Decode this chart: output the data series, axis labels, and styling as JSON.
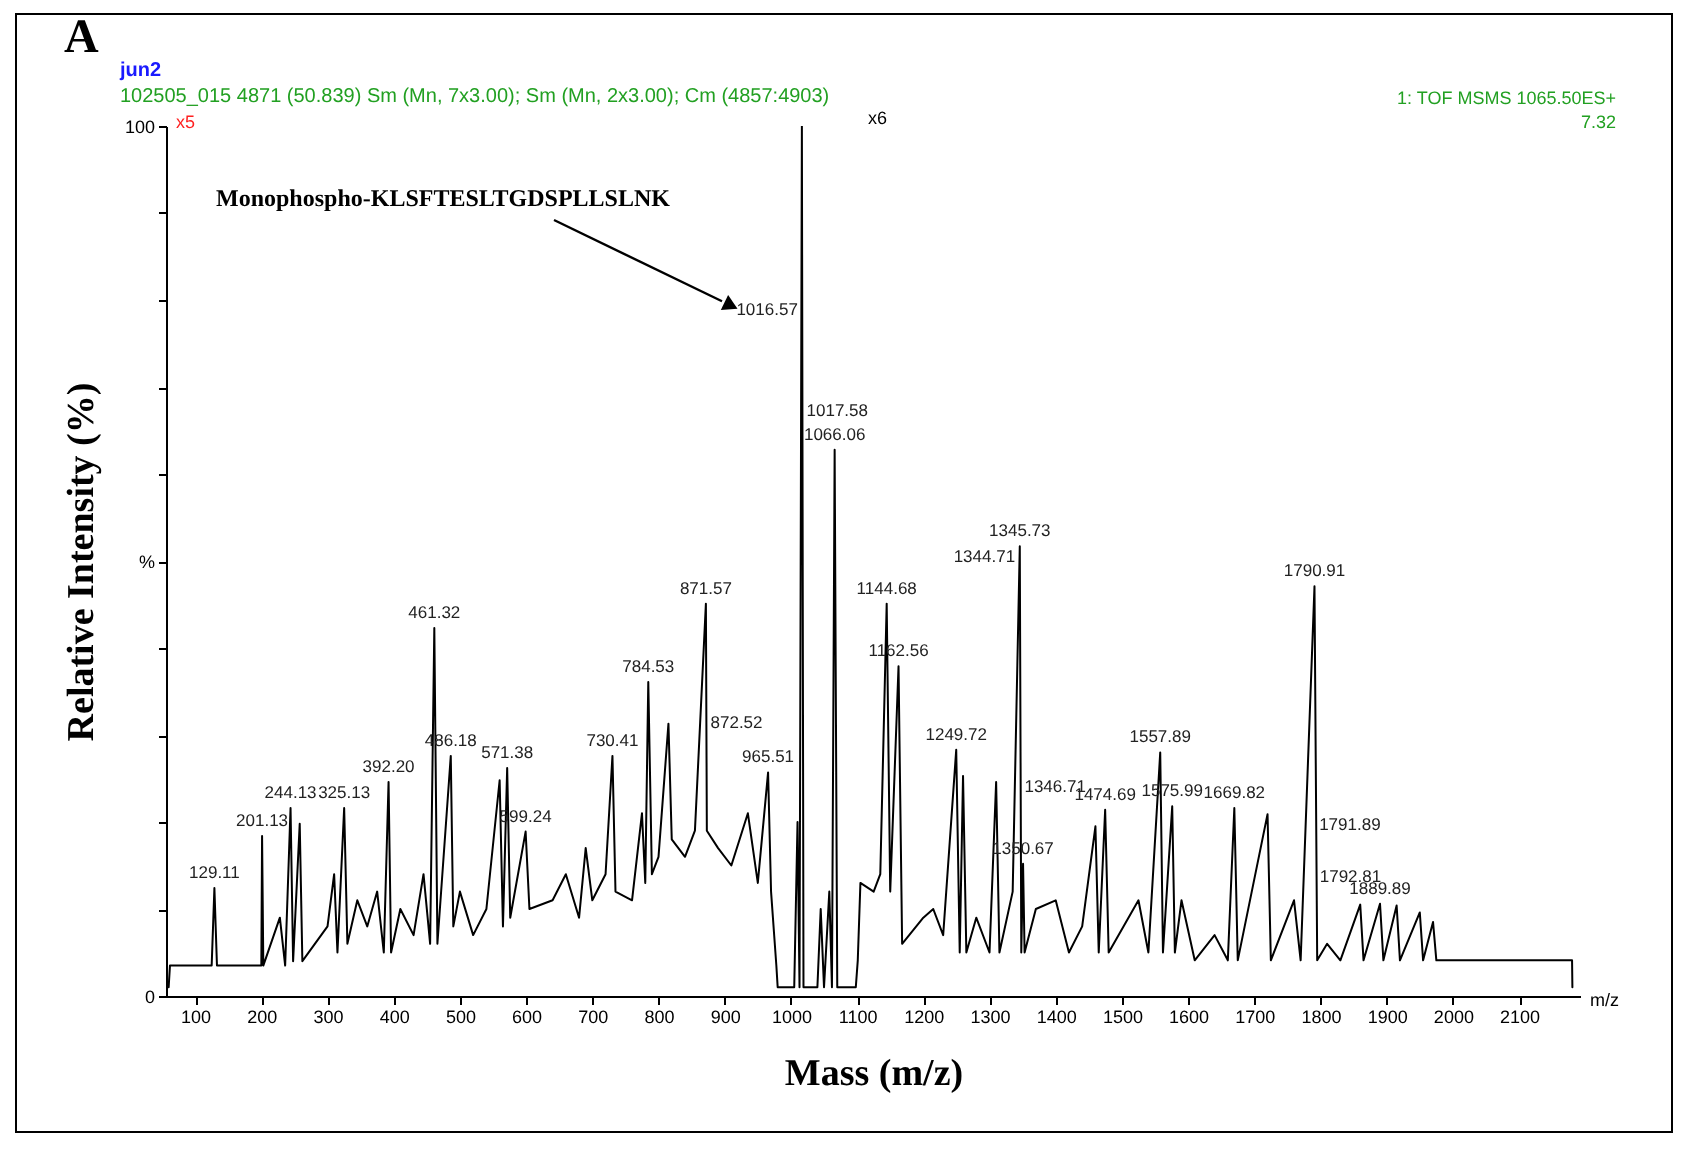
{
  "chart_data": {
    "type": "line",
    "title": "jun2",
    "subtitle": "102505_015  4871 (50.839) Sm (Mn, 7x3.00); Sm (Mn, 2x3.00); Cm (4857:4903)",
    "xlabel": "Mass (m/z)",
    "ylabel": "Relative Intensity (%)",
    "x": [
      60,
      62,
      125,
      129.11,
      133,
      200,
      201.13,
      203,
      228,
      236,
      244.13,
      248,
      258,
      262,
      300,
      310,
      315,
      325.13,
      330,
      345,
      360,
      375,
      385,
      392.2,
      396,
      410,
      430,
      445,
      455,
      461.32,
      466,
      486.18,
      490,
      500,
      520,
      540,
      560,
      565,
      571.38,
      576,
      599.24,
      605,
      640,
      660,
      680,
      690,
      700,
      720,
      730.41,
      735,
      760,
      775,
      780,
      784.53,
      790,
      800,
      815,
      820,
      840,
      855,
      871.57,
      873,
      890,
      910,
      935,
      950,
      965.51,
      970,
      978,
      980,
      1005,
      1010,
      1013,
      1016.57,
      1019,
      1040,
      1045,
      1050,
      1058,
      1062,
      1066.06,
      1070,
      1098,
      1101,
      1105,
      1125,
      1135,
      1144.68,
      1150,
      1162.56,
      1168,
      1200,
      1215,
      1230,
      1249.72,
      1255,
      1260,
      1265,
      1280,
      1300,
      1310,
      1315,
      1335,
      1345.73,
      1348,
      1350.67,
      1353,
      1370,
      1400,
      1420,
      1440,
      1460,
      1465,
      1474.69,
      1480,
      1525,
      1540,
      1557.89,
      1562,
      1575.99,
      1580,
      1590,
      1610,
      1640,
      1660,
      1669.82,
      1675,
      1720,
      1725,
      1760,
      1770,
      1790.91,
      1795,
      1810,
      1830,
      1860,
      1865,
      1889.89,
      1895,
      1915,
      1920,
      1950,
      1955,
      1970,
      1975,
      2180,
      2180.5
    ],
    "series": [
      {
        "color": "#000000",
        "values": [
          1,
          3.5,
          3.5,
          12.4,
          3.5,
          3.5,
          18.4,
          3.5,
          9,
          3.5,
          21.6,
          4,
          19.8,
          4,
          8,
          14,
          5,
          21.6,
          6,
          11,
          8,
          12,
          5,
          24.6,
          5,
          10,
          7,
          14,
          6,
          42.3,
          6,
          27.6,
          8,
          12,
          7,
          10,
          24.8,
          8,
          26.2,
          9,
          18.9,
          10,
          11,
          14,
          9,
          17,
          11,
          14,
          27.6,
          12,
          11,
          21,
          13,
          36.1,
          14,
          16,
          31.3,
          18,
          16,
          19,
          45.1,
          19,
          17,
          15,
          21,
          13,
          25.7,
          12,
          3.5,
          1,
          1,
          20,
          1,
          100,
          1,
          1,
          10,
          1,
          12,
          1,
          62.8,
          1,
          1,
          4.1,
          13,
          12,
          14,
          45.1,
          12,
          37.9,
          6,
          9,
          10,
          7,
          28.3,
          5,
          25.3,
          5,
          9,
          5,
          24.6,
          5,
          12,
          51.7,
          5,
          15.2,
          5,
          10,
          11,
          5,
          8,
          19.5,
          5,
          21.4,
          5,
          11,
          5,
          28,
          5,
          21.8,
          5,
          11,
          4.1,
          7,
          4.1,
          21.6,
          4.1,
          20.9,
          4.1,
          11,
          4.1,
          47.1,
          4.1,
          6,
          4.1,
          10.5,
          4.1,
          10.6,
          4.1,
          10.4,
          4.1,
          9.6,
          4.1,
          8.5,
          4.1,
          4.1,
          1
        ]
      }
    ],
    "xlim": [
      56,
      2192
    ],
    "ylim": [
      0,
      100
    ],
    "xticks": [
      100,
      200,
      300,
      400,
      500,
      600,
      700,
      800,
      900,
      1000,
      1100,
      1200,
      1300,
      1400,
      1500,
      1600,
      1700,
      1800,
      1900,
      2000,
      2100
    ],
    "yticks": [
      0,
      {
        "value": 10,
        "label": null
      },
      {
        "value": 20,
        "label": null
      },
      {
        "value": 30,
        "label": null
      },
      {
        "value": 40,
        "label": null
      },
      {
        "value": 50,
        "label": "%"
      },
      {
        "value": 60,
        "label": null
      },
      {
        "value": 70,
        "label": null
      },
      {
        "value": 80,
        "label": null
      },
      {
        "value": 90,
        "label": null
      },
      100
    ],
    "grid": false,
    "marker": "none",
    "line_style": "solid",
    "annotations": [
      "A",
      "x5",
      "x6",
      "7.32",
      "1: TOF MSMS 1065.50ES+",
      "m/z",
      "Monophospho-KLSFTESLTGDSPLLSLNK",
      {
        "text": "129.11",
        "x": 129.11,
        "y": 12.4
      },
      {
        "text": "201.13",
        "x": 201.13,
        "y": 18.4
      },
      {
        "text": "244.13",
        "x": 244.13,
        "y": 21.6
      },
      {
        "text": "325.13",
        "x": 325.13,
        "y": 21.6
      },
      {
        "text": "392.20",
        "x": 392.2,
        "y": 24.6
      },
      {
        "text": "461.32",
        "x": 461.32,
        "y": 42.3
      },
      {
        "text": "486.18",
        "x": 486.18,
        "y": 27.6
      },
      {
        "text": "571.38",
        "x": 571.38,
        "y": 26.2
      },
      {
        "text": "599.24",
        "x": 599.24,
        "y": 18.9
      },
      {
        "text": "730.41",
        "x": 730.41,
        "y": 27.6
      },
      {
        "text": "784.53",
        "x": 784.53,
        "y": 36.1
      },
      {
        "text": "871.57",
        "x": 871.57,
        "y": 45.1
      },
      {
        "text": "872.52",
        "x": 872.52,
        "y": 31.5
      },
      {
        "text": "965.51",
        "x": 965.51,
        "y": 25.7
      },
      {
        "text": "1016.57",
        "x": 1016.57,
        "y": 79
      },
      {
        "text": "1017.58",
        "x": 1017.58,
        "y": 67.4
      },
      {
        "text": "1066.06",
        "x": 1066.06,
        "y": 62.8
      },
      {
        "text": "1144.68",
        "x": 1144.68,
        "y": 45.1
      },
      {
        "text": "1162.56",
        "x": 1162.56,
        "y": 37.9
      },
      {
        "text": "1249.72",
        "x": 1249.72,
        "y": 28.3
      },
      {
        "text": "1344.71",
        "x": 1344.71,
        "y": 50.6
      },
      {
        "text": "1345.73",
        "x": 1345.73,
        "y": 51.7
      },
      {
        "text": "1346.71",
        "x": 1346.71,
        "y": 24.1
      },
      {
        "text": "1350.67",
        "x": 1350.67,
        "y": 15.2
      },
      {
        "text": "1474.69",
        "x": 1474.69,
        "y": 21.4
      },
      {
        "text": "1557.89",
        "x": 1557.89,
        "y": 28
      },
      {
        "text": "1575.99",
        "x": 1575.99,
        "y": 21.8
      },
      {
        "text": "1669.82",
        "x": 1669.82,
        "y": 21.6
      },
      {
        "text": "1790.91",
        "x": 1790.91,
        "y": 47.1
      },
      {
        "text": "1791.89",
        "x": 1791.89,
        "y": 19.8
      },
      {
        "text": "1792.81",
        "x": 1792.81,
        "y": 13.8
      },
      {
        "text": "1889.89",
        "x": 1889.89,
        "y": 10.6
      }
    ]
  }
}
